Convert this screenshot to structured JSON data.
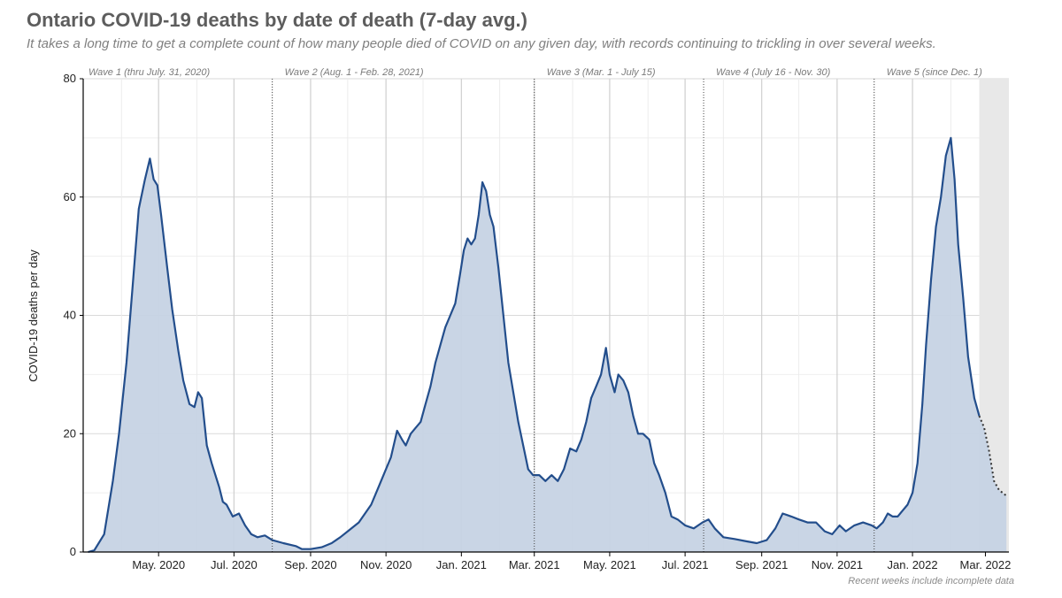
{
  "title": "Ontario COVID-19 deaths by date of death (7-day avg.)",
  "subtitle": "It takes a long time to get a complete count of how many people died of COVID on any given day, with records continuing to trickling in over several weeks.",
  "footnote": "Recent weeks include incomplete data",
  "colors": {
    "line": "#234e8c",
    "fill": "#c6d3e4",
    "incomplete_shade": "#e8e8e8",
    "grid": "#e6e6e6",
    "axis": "#000000"
  },
  "chart_data": {
    "type": "area",
    "ylabel": "COVID-19 deaths per day",
    "ylim": [
      0,
      80
    ],
    "xlim": [
      "2020-03-01",
      "2022-03-20"
    ],
    "yticks": [
      0,
      20,
      40,
      60,
      80
    ],
    "grid": true,
    "xticks": [
      {
        "date": "2020-05-01",
        "label": "May. 2020"
      },
      {
        "date": "2020-07-01",
        "label": "Jul. 2020"
      },
      {
        "date": "2020-09-01",
        "label": "Sep. 2020"
      },
      {
        "date": "2020-11-01",
        "label": "Nov. 2020"
      },
      {
        "date": "2021-01-01",
        "label": "Jan. 2021"
      },
      {
        "date": "2021-03-01",
        "label": "Mar. 2021"
      },
      {
        "date": "2021-05-01",
        "label": "May. 2021"
      },
      {
        "date": "2021-07-01",
        "label": "Jul. 2021"
      },
      {
        "date": "2021-09-01",
        "label": "Sep. 2021"
      },
      {
        "date": "2021-11-01",
        "label": "Nov. 2021"
      },
      {
        "date": "2022-01-01",
        "label": "Jan. 2022"
      },
      {
        "date": "2022-03-01",
        "label": "Mar. 2022"
      }
    ],
    "waves": [
      {
        "label": "Wave 1 (thru July. 31, 2020)",
        "start": "2020-03-01"
      },
      {
        "label": "Wave 2 (Aug. 1 - Feb. 28, 2021)",
        "start": "2020-08-01"
      },
      {
        "label": "Wave 3 (Mar. 1 - July 15)",
        "start": "2021-03-01"
      },
      {
        "label": "Wave 4 (July 16 - Nov. 30)",
        "start": "2021-07-16"
      },
      {
        "label": "Wave 5 (since Dec. 1)",
        "start": "2021-12-01"
      }
    ],
    "incomplete_from": "2022-02-24",
    "series": [
      {
        "values": [
          {
            "x": "2020-03-05",
            "y": 0
          },
          {
            "x": "2020-03-10",
            "y": 0.3
          },
          {
            "x": "2020-03-18",
            "y": 3
          },
          {
            "x": "2020-03-25",
            "y": 12
          },
          {
            "x": "2020-03-30",
            "y": 20
          },
          {
            "x": "2020-04-05",
            "y": 32
          },
          {
            "x": "2020-04-10",
            "y": 45
          },
          {
            "x": "2020-04-15",
            "y": 58
          },
          {
            "x": "2020-04-20",
            "y": 63
          },
          {
            "x": "2020-04-24",
            "y": 66.5
          },
          {
            "x": "2020-04-27",
            "y": 63
          },
          {
            "x": "2020-04-30",
            "y": 62
          },
          {
            "x": "2020-05-03",
            "y": 57
          },
          {
            "x": "2020-05-08",
            "y": 48
          },
          {
            "x": "2020-05-12",
            "y": 41
          },
          {
            "x": "2020-05-17",
            "y": 34
          },
          {
            "x": "2020-05-21",
            "y": 29
          },
          {
            "x": "2020-05-26",
            "y": 25
          },
          {
            "x": "2020-05-30",
            "y": 24.5
          },
          {
            "x": "2020-06-02",
            "y": 27
          },
          {
            "x": "2020-06-05",
            "y": 26
          },
          {
            "x": "2020-06-09",
            "y": 18
          },
          {
            "x": "2020-06-13",
            "y": 15
          },
          {
            "x": "2020-06-16",
            "y": 13
          },
          {
            "x": "2020-06-19",
            "y": 11
          },
          {
            "x": "2020-06-22",
            "y": 8.5
          },
          {
            "x": "2020-06-25",
            "y": 8
          },
          {
            "x": "2020-06-30",
            "y": 6
          },
          {
            "x": "2020-07-05",
            "y": 6.5
          },
          {
            "x": "2020-07-10",
            "y": 4.5
          },
          {
            "x": "2020-07-15",
            "y": 3
          },
          {
            "x": "2020-07-20",
            "y": 2.5
          },
          {
            "x": "2020-07-26",
            "y": 2.8
          },
          {
            "x": "2020-08-01",
            "y": 2
          },
          {
            "x": "2020-08-10",
            "y": 1.5
          },
          {
            "x": "2020-08-20",
            "y": 1
          },
          {
            "x": "2020-08-25",
            "y": 0.5
          },
          {
            "x": "2020-09-01",
            "y": 0.5
          },
          {
            "x": "2020-09-10",
            "y": 0.8
          },
          {
            "x": "2020-09-18",
            "y": 1.5
          },
          {
            "x": "2020-09-25",
            "y": 2.5
          },
          {
            "x": "2020-10-01",
            "y": 3.5
          },
          {
            "x": "2020-10-10",
            "y": 5
          },
          {
            "x": "2020-10-20",
            "y": 8
          },
          {
            "x": "2020-10-26",
            "y": 11
          },
          {
            "x": "2020-11-01",
            "y": 14
          },
          {
            "x": "2020-11-05",
            "y": 16
          },
          {
            "x": "2020-11-10",
            "y": 20.5
          },
          {
            "x": "2020-11-14",
            "y": 19
          },
          {
            "x": "2020-11-17",
            "y": 18
          },
          {
            "x": "2020-11-21",
            "y": 20
          },
          {
            "x": "2020-11-25",
            "y": 21
          },
          {
            "x": "2020-11-29",
            "y": 22
          },
          {
            "x": "2020-12-03",
            "y": 25
          },
          {
            "x": "2020-12-07",
            "y": 28
          },
          {
            "x": "2020-12-11",
            "y": 32
          },
          {
            "x": "2020-12-15",
            "y": 35
          },
          {
            "x": "2020-12-19",
            "y": 38
          },
          {
            "x": "2020-12-23",
            "y": 40
          },
          {
            "x": "2020-12-27",
            "y": 42
          },
          {
            "x": "2020-12-31",
            "y": 47
          },
          {
            "x": "2021-01-03",
            "y": 51
          },
          {
            "x": "2021-01-06",
            "y": 53
          },
          {
            "x": "2021-01-09",
            "y": 52
          },
          {
            "x": "2021-01-12",
            "y": 53
          },
          {
            "x": "2021-01-15",
            "y": 57
          },
          {
            "x": "2021-01-18",
            "y": 62.5
          },
          {
            "x": "2021-01-21",
            "y": 61
          },
          {
            "x": "2021-01-24",
            "y": 57
          },
          {
            "x": "2021-01-27",
            "y": 55
          },
          {
            "x": "2021-01-31",
            "y": 48
          },
          {
            "x": "2021-02-04",
            "y": 40
          },
          {
            "x": "2021-02-08",
            "y": 32
          },
          {
            "x": "2021-02-12",
            "y": 27
          },
          {
            "x": "2021-02-16",
            "y": 22
          },
          {
            "x": "2021-02-20",
            "y": 18
          },
          {
            "x": "2021-02-24",
            "y": 14
          },
          {
            "x": "2021-02-28",
            "y": 13
          },
          {
            "x": "2021-03-05",
            "y": 13
          },
          {
            "x": "2021-03-10",
            "y": 12
          },
          {
            "x": "2021-03-15",
            "y": 13
          },
          {
            "x": "2021-03-20",
            "y": 12
          },
          {
            "x": "2021-03-25",
            "y": 14
          },
          {
            "x": "2021-03-30",
            "y": 17.5
          },
          {
            "x": "2021-04-04",
            "y": 17
          },
          {
            "x": "2021-04-08",
            "y": 19
          },
          {
            "x": "2021-04-12",
            "y": 22
          },
          {
            "x": "2021-04-16",
            "y": 26
          },
          {
            "x": "2021-04-20",
            "y": 28
          },
          {
            "x": "2021-04-24",
            "y": 30
          },
          {
            "x": "2021-04-28",
            "y": 34.5
          },
          {
            "x": "2021-05-01",
            "y": 30
          },
          {
            "x": "2021-05-05",
            "y": 27
          },
          {
            "x": "2021-05-08",
            "y": 30
          },
          {
            "x": "2021-05-12",
            "y": 29
          },
          {
            "x": "2021-05-16",
            "y": 27
          },
          {
            "x": "2021-05-20",
            "y": 23
          },
          {
            "x": "2021-05-24",
            "y": 20
          },
          {
            "x": "2021-05-28",
            "y": 20
          },
          {
            "x": "2021-06-02",
            "y": 19
          },
          {
            "x": "2021-06-06",
            "y": 15
          },
          {
            "x": "2021-06-10",
            "y": 13
          },
          {
            "x": "2021-06-15",
            "y": 10
          },
          {
            "x": "2021-06-20",
            "y": 6
          },
          {
            "x": "2021-06-25",
            "y": 5.5
          },
          {
            "x": "2021-07-01",
            "y": 4.5
          },
          {
            "x": "2021-07-08",
            "y": 4
          },
          {
            "x": "2021-07-15",
            "y": 5
          },
          {
            "x": "2021-07-20",
            "y": 5.5
          },
          {
            "x": "2021-07-25",
            "y": 4
          },
          {
            "x": "2021-08-01",
            "y": 2.5
          },
          {
            "x": "2021-08-10",
            "y": 2.2
          },
          {
            "x": "2021-08-20",
            "y": 1.8
          },
          {
            "x": "2021-08-28",
            "y": 1.5
          },
          {
            "x": "2021-09-05",
            "y": 2
          },
          {
            "x": "2021-09-12",
            "y": 4
          },
          {
            "x": "2021-09-18",
            "y": 6.5
          },
          {
            "x": "2021-09-25",
            "y": 6
          },
          {
            "x": "2021-10-01",
            "y": 5.5
          },
          {
            "x": "2021-10-08",
            "y": 5
          },
          {
            "x": "2021-10-15",
            "y": 5
          },
          {
            "x": "2021-10-22",
            "y": 3.5
          },
          {
            "x": "2021-10-28",
            "y": 3
          },
          {
            "x": "2021-11-03",
            "y": 4.5
          },
          {
            "x": "2021-11-08",
            "y": 3.5
          },
          {
            "x": "2021-11-15",
            "y": 4.5
          },
          {
            "x": "2021-11-22",
            "y": 5
          },
          {
            "x": "2021-11-29",
            "y": 4.5
          },
          {
            "x": "2021-12-03",
            "y": 4
          },
          {
            "x": "2021-12-08",
            "y": 5
          },
          {
            "x": "2021-12-12",
            "y": 6.5
          },
          {
            "x": "2021-12-16",
            "y": 6
          },
          {
            "x": "2021-12-20",
            "y": 6
          },
          {
            "x": "2021-12-24",
            "y": 7
          },
          {
            "x": "2021-12-28",
            "y": 8
          },
          {
            "x": "2022-01-01",
            "y": 10
          },
          {
            "x": "2022-01-05",
            "y": 15
          },
          {
            "x": "2022-01-09",
            "y": 25
          },
          {
            "x": "2022-01-12",
            "y": 35
          },
          {
            "x": "2022-01-16",
            "y": 46
          },
          {
            "x": "2022-01-20",
            "y": 55
          },
          {
            "x": "2022-01-24",
            "y": 60
          },
          {
            "x": "2022-01-28",
            "y": 67
          },
          {
            "x": "2022-02-01",
            "y": 70
          },
          {
            "x": "2022-02-04",
            "y": 63
          },
          {
            "x": "2022-02-07",
            "y": 52
          },
          {
            "x": "2022-02-11",
            "y": 43
          },
          {
            "x": "2022-02-15",
            "y": 33
          },
          {
            "x": "2022-02-20",
            "y": 26
          },
          {
            "x": "2022-02-24",
            "y": 23
          }
        ],
        "incomplete": [
          {
            "x": "2022-02-24",
            "y": 23
          },
          {
            "x": "2022-02-28",
            "y": 21
          },
          {
            "x": "2022-03-04",
            "y": 17
          },
          {
            "x": "2022-03-08",
            "y": 12
          },
          {
            "x": "2022-03-12",
            "y": 10.5
          },
          {
            "x": "2022-03-18",
            "y": 9.5
          }
        ]
      }
    ]
  }
}
